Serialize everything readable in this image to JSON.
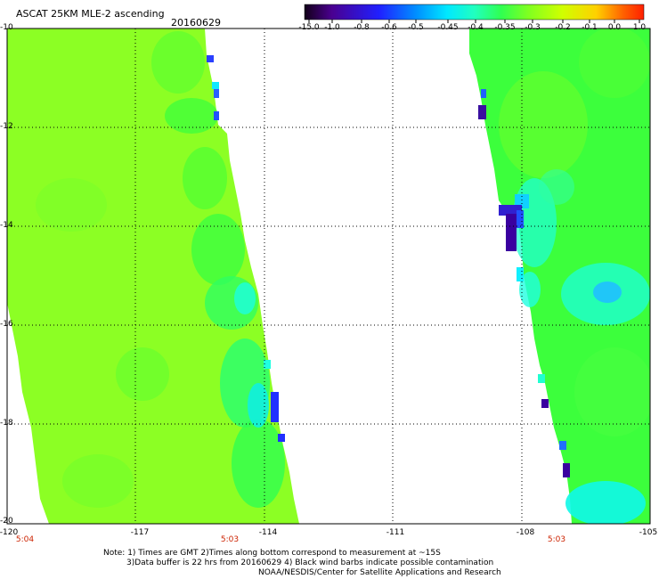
{
  "header": {
    "title": "ASCAT 25KM MLE-2 ascending",
    "date": "20160629"
  },
  "colorbar": {
    "labels": [
      "-15.0",
      "-1.0",
      "-0.8",
      "-0.6",
      "-0.5",
      "-0.45",
      "-0.4",
      "-0.35",
      "-0.3",
      "-0.2",
      "-0.1",
      "0.0",
      "1.0"
    ],
    "colors": [
      "#2a0030",
      "#4a0090",
      "#2020ff",
      "#0090ff",
      "#00e8ff",
      "#20ffc0",
      "#30ff50",
      "#80ff20",
      "#c8ff00",
      "#f8ff00",
      "#ffa000",
      "#ff4000"
    ]
  },
  "map": {
    "lat_labels": [
      "-10",
      "-12",
      "-14",
      "-16",
      "-18",
      "-20"
    ],
    "lon_labels": [
      "-120",
      "-117",
      "-114",
      "-111",
      "-108",
      "-105"
    ],
    "time_labels": [
      "5:04",
      "5:03",
      "5:03"
    ],
    "lon_range": [
      -120,
      -105
    ],
    "lat_range": [
      -20,
      -10
    ],
    "palette": {
      "lime": "#8aff20",
      "green": "#3cff3c",
      "teal": "#20ffb0",
      "cyan": "#00f0ff",
      "blue": "#2050ff",
      "purple": "#3a00a0",
      "dark": "#1a0040"
    }
  },
  "footer": {
    "note_line1": "Note: 1) Times are GMT 2)Times along bottom correspond to measurement at ~15S",
    "note_line2": "3)Data buffer is 22 hrs from 20160629 4) Black wind barbs indicate possible contamination",
    "note_line3": "NOAA/NESDIS/Center for Satellite Applications and Research"
  }
}
